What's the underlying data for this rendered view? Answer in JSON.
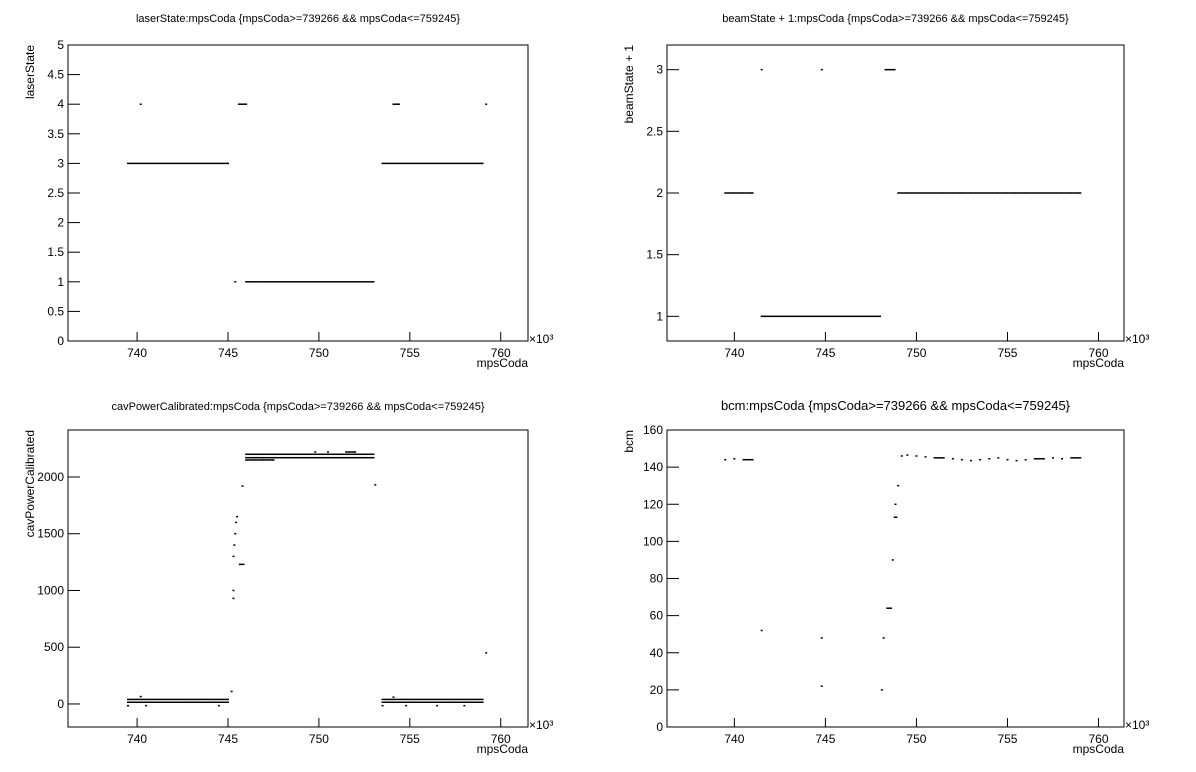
{
  "chart_data": [
    {
      "type": "scatter",
      "title": "laserState:mpsCoda {mpsCoda>=739266 && mpsCoda<=759245}",
      "xlabel": "mpsCoda",
      "ylabel": "laserState",
      "x_multiplier": "×10³",
      "xlim": [
        736200,
        761500
      ],
      "ylim": [
        0,
        5
      ],
      "xticks": [
        {
          "value": 740000,
          "label": "740"
        },
        {
          "value": 745000,
          "label": "745"
        },
        {
          "value": 750000,
          "label": "750"
        },
        {
          "value": 755000,
          "label": "755"
        },
        {
          "value": 760000,
          "label": "760"
        }
      ],
      "yticks": [
        0,
        0.5,
        1,
        1.5,
        2,
        2.5,
        3,
        3.5,
        4,
        4.5,
        5
      ],
      "color": "#000000",
      "x": [
        739500,
        740000,
        740500,
        741000,
        741500,
        742000,
        742500,
        743000,
        743500,
        744000,
        744500,
        745000,
        753500,
        754000,
        754500,
        755000,
        755500,
        756000,
        756500,
        757000,
        757500,
        758000,
        758500,
        759000,
        746000,
        746500,
        747000,
        747500,
        748000,
        748500,
        749000,
        749500,
        750000,
        750500,
        751000,
        751500,
        752000,
        752500,
        753000,
        745400,
        740200,
        745600,
        746000,
        754100,
        754400,
        759200
      ],
      "y": [
        3,
        3,
        3,
        3,
        3,
        3,
        3,
        3,
        3,
        3,
        3,
        3,
        3,
        3,
        3,
        3,
        3,
        3,
        3,
        3,
        3,
        3,
        3,
        3,
        1,
        1,
        1,
        1,
        1,
        1,
        1,
        1,
        1,
        1,
        1,
        1,
        1,
        1,
        1,
        1,
        4,
        4,
        4,
        4,
        4,
        4
      ]
    },
    {
      "type": "scatter",
      "title": "beamState + 1:mpsCoda {mpsCoda>=739266 && mpsCoda<=759245}",
      "xlabel": "mpsCoda",
      "ylabel": "beamState + 1",
      "x_multiplier": "×10³",
      "xlim": [
        736300,
        761400
      ],
      "ylim": [
        0.8,
        3.2
      ],
      "xticks": [
        {
          "value": 740000,
          "label": "740"
        },
        {
          "value": 745000,
          "label": "745"
        },
        {
          "value": 750000,
          "label": "750"
        },
        {
          "value": 755000,
          "label": "755"
        },
        {
          "value": 760000,
          "label": "760"
        }
      ],
      "yticks": [
        1,
        1.5,
        2,
        2.5,
        3
      ],
      "color": "#000000",
      "x": [
        739500,
        740000,
        740500,
        741000,
        749000,
        749500,
        750000,
        750500,
        751000,
        751500,
        752000,
        752500,
        753000,
        753500,
        754000,
        754500,
        755000,
        755500,
        756000,
        756500,
        757000,
        757500,
        758000,
        758500,
        759000,
        741500,
        742000,
        742500,
        743000,
        743500,
        744000,
        744500,
        745000,
        745500,
        746000,
        746500,
        747000,
        747500,
        748000,
        741500,
        744800,
        748300,
        748800
      ],
      "y": [
        2,
        2,
        2,
        2,
        2,
        2,
        2,
        2,
        2,
        2,
        2,
        2,
        2,
        2,
        2,
        2,
        2,
        2,
        2,
        2,
        2,
        2,
        2,
        2,
        2,
        1,
        1,
        1,
        1,
        1,
        1,
        1,
        1,
        1,
        1,
        1,
        1,
        1,
        1,
        3,
        3,
        3,
        3
      ]
    },
    {
      "type": "scatter",
      "title": "cavPowerCalibrated:mpsCoda {mpsCoda>=739266 && mpsCoda<=759245}",
      "xlabel": "mpsCoda",
      "ylabel": "cavPowerCalibrated",
      "x_multiplier": "×10³",
      "xlim": [
        736200,
        761500
      ],
      "ylim": [
        -203,
        2414
      ],
      "xticks": [
        {
          "value": 740000,
          "label": "740"
        },
        {
          "value": 745000,
          "label": "745"
        },
        {
          "value": 750000,
          "label": "750"
        },
        {
          "value": 755000,
          "label": "755"
        },
        {
          "value": 760000,
          "label": "760"
        }
      ],
      "yticks": [
        0,
        500,
        1000,
        1500,
        2000
      ],
      "color": "#000000",
      "x": [
        739500,
        740000,
        740500,
        741000,
        741500,
        742000,
        742500,
        743000,
        743500,
        744000,
        744500,
        745000,
        739500,
        740000,
        740500,
        741000,
        741500,
        742000,
        742500,
        743000,
        743500,
        744000,
        744500,
        745000,
        753500,
        754000,
        754500,
        755000,
        755500,
        756000,
        756500,
        757000,
        757500,
        758000,
        758500,
        759000,
        753500,
        754000,
        754500,
        755000,
        755500,
        756000,
        756500,
        757000,
        757500,
        758000,
        758500,
        759000,
        746000,
        746500,
        747000,
        747500,
        748000,
        748500,
        749000,
        749500,
        750000,
        750500,
        751000,
        751500,
        752000,
        752500,
        753000,
        746000,
        746500,
        747000,
        747500,
        748000,
        748500,
        749000,
        749500,
        750000,
        750500,
        751000,
        751500,
        752000,
        752500,
        753000,
        746000,
        746500,
        747000,
        747500,
        745300,
        745350,
        745400,
        745450,
        745500,
        745650,
        745850,
        745800,
        745300,
        745300,
        745200,
        740200,
        754100,
        759200,
        753100,
        749800,
        750500,
        751500,
        752000,
        739500,
        740500,
        744500,
        753500,
        754800,
        756500,
        758000
      ],
      "y": [
        40,
        40,
        40,
        40,
        40,
        40,
        40,
        40,
        40,
        40,
        40,
        40,
        15,
        15,
        15,
        15,
        15,
        15,
        15,
        15,
        15,
        15,
        15,
        15,
        40,
        40,
        40,
        40,
        40,
        40,
        40,
        40,
        40,
        40,
        40,
        40,
        15,
        15,
        15,
        15,
        15,
        15,
        15,
        15,
        15,
        15,
        15,
        15,
        2200,
        2200,
        2200,
        2200,
        2200,
        2200,
        2200,
        2200,
        2200,
        2200,
        2200,
        2200,
        2200,
        2200,
        2200,
        2170,
        2170,
        2170,
        2170,
        2170,
        2170,
        2170,
        2170,
        2170,
        2170,
        2170,
        2170,
        2170,
        2170,
        2170,
        2150,
        2150,
        2150,
        2150,
        1300,
        1400,
        1500,
        1600,
        1650,
        1230,
        1230,
        1920,
        1000,
        930,
        110,
        65,
        60,
        450,
        1930,
        2220,
        2220,
        2220,
        2220,
        -15,
        -15,
        -15,
        -15,
        -15,
        -15,
        -15
      ]
    },
    {
      "type": "scatter",
      "title": "bcm:mpsCoda {mpsCoda>=739266 && mpsCoda<=759245}",
      "xlabel": "mpsCoda",
      "ylabel": "bcm",
      "x_multiplier": "×10³",
      "xlim": [
        736300,
        761400
      ],
      "ylim": [
        0,
        160
      ],
      "xticks": [
        {
          "value": 740000,
          "label": "740"
        },
        {
          "value": 745000,
          "label": "745"
        },
        {
          "value": 750000,
          "label": "750"
        },
        {
          "value": 755000,
          "label": "755"
        },
        {
          "value": 760000,
          "label": "760"
        }
      ],
      "yticks": [
        0,
        20,
        40,
        60,
        80,
        100,
        120,
        140,
        160
      ],
      "color": "#000000",
      "x": [
        739500,
        740000,
        740500,
        741000,
        748200,
        748400,
        748600,
        748700,
        748800,
        748850,
        748900,
        749000,
        749200,
        749500,
        750000,
        750500,
        751000,
        751500,
        752000,
        752500,
        753000,
        753500,
        754000,
        754500,
        755000,
        755500,
        756000,
        756500,
        757000,
        757500,
        758000,
        758500,
        759000,
        741500,
        744800,
        744800,
        748100
      ],
      "y": [
        144,
        144.5,
        144,
        144,
        48,
        64,
        64,
        90,
        113,
        120,
        113,
        130,
        146,
        146.5,
        146,
        145.5,
        145,
        145,
        144.5,
        144,
        143.5,
        144,
        144.5,
        145,
        144,
        143.5,
        144,
        144.5,
        144.5,
        145,
        144.5,
        145,
        145,
        52,
        48,
        22,
        20
      ]
    }
  ]
}
